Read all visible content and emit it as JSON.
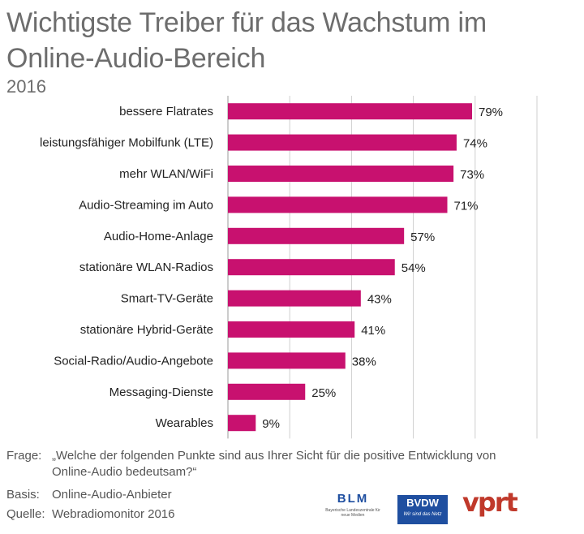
{
  "title": "Wichtigste Treiber für das Wachstum im Online-Audio-Bereich",
  "subtitle": "2016",
  "colors": {
    "bar": "#c8116f",
    "grid": "#cfcfcf"
  },
  "chart_data": {
    "type": "bar",
    "orientation": "horizontal",
    "title": "Wichtigste Treiber für das Wachstum im Online-Audio-Bereich",
    "subtitle": "2016",
    "unit": "%",
    "xlim": [
      0,
      100
    ],
    "categories": [
      "bessere Flatrates",
      "leistungsfähiger Mobilfunk (LTE)",
      "mehr WLAN/WiFi",
      "Audio-Streaming im Auto",
      "Audio-Home-Anlage",
      "stationäre WLAN-Radios",
      "Smart-TV-Geräte",
      "stationäre Hybrid-Geräte",
      "Social-Radio/Audio-Angebote",
      "Messaging-Dienste",
      "Wearables"
    ],
    "values": [
      79,
      74,
      73,
      71,
      57,
      54,
      43,
      41,
      38,
      25,
      9
    ],
    "labels": [
      "79%",
      "74%",
      "73%",
      "71%",
      "57%",
      "54%",
      "43%",
      "41%",
      "38%",
      "25%",
      "9%"
    ]
  },
  "footer": {
    "frage_label": "Frage:",
    "frage_text": "„Welche der folgenden Punkte sind aus Ihrer Sicht für die positive Entwicklung von Online-Audio bedeutsam?“",
    "basis_label": "Basis:",
    "basis_text": "Online-Audio-Anbieter",
    "quelle_label": "Quelle:",
    "quelle_text": "Webradiomonitor 2016"
  },
  "logos": {
    "blm": "BLM",
    "blm_sub": "Bayerische Landeszentrale für neue Medien",
    "bvdw": "BVDW",
    "bvdw_sub": "Wir sind das Netz",
    "vprt": "vprt"
  }
}
